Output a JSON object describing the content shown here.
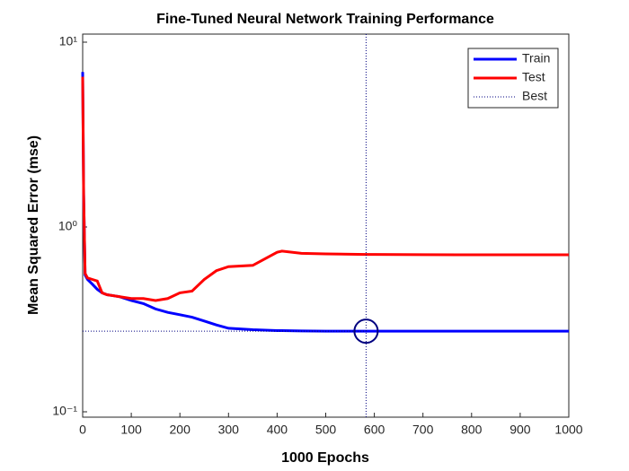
{
  "chart_data": {
    "type": "line",
    "title": "Fine-Tuned Neural Network Training Performance",
    "x_label": "1000 Epochs",
    "y_label": "Mean Squared Error  (mse)",
    "log_y": true,
    "x": [
      0,
      2,
      5,
      10,
      20,
      30,
      40,
      50,
      75,
      100,
      125,
      150,
      175,
      200,
      225,
      250,
      275,
      300,
      350,
      400,
      410,
      450,
      500,
      583,
      600,
      700,
      800,
      900,
      1000
    ],
    "series": [
      {
        "name": "Train",
        "color": "#0000ff",
        "values": [
          6.9,
          1.5,
          0.55,
          0.52,
          0.49,
          0.46,
          0.44,
          0.43,
          0.42,
          0.4,
          0.385,
          0.36,
          0.345,
          0.335,
          0.325,
          0.31,
          0.295,
          0.283,
          0.278,
          0.275,
          0.275,
          0.274,
          0.273,
          0.273,
          0.273,
          0.273,
          0.273,
          0.273,
          0.273
        ]
      },
      {
        "name": "Test",
        "color": "#ff0000",
        "values": [
          6.5,
          1.5,
          0.56,
          0.53,
          0.52,
          0.51,
          0.44,
          0.43,
          0.42,
          0.41,
          0.41,
          0.4,
          0.41,
          0.44,
          0.45,
          0.52,
          0.58,
          0.61,
          0.62,
          0.73,
          0.74,
          0.72,
          0.715,
          0.71,
          0.71,
          0.708,
          0.707,
          0.707,
          0.707
        ]
      }
    ],
    "best": {
      "name": "Best",
      "x": 583,
      "y": 0.273,
      "color": "#000080"
    },
    "xlim": [
      0,
      1000
    ],
    "xticks": [
      0,
      100,
      200,
      300,
      400,
      500,
      600,
      700,
      800,
      900,
      1000
    ],
    "ylim": [
      0.0935,
      11.06
    ],
    "yticks": [
      {
        "value": 0.1,
        "label": "10⁻¹"
      },
      {
        "value": 1,
        "label": "10⁰"
      },
      {
        "value": 10,
        "label": "10¹"
      }
    ],
    "legend": "upper right"
  }
}
